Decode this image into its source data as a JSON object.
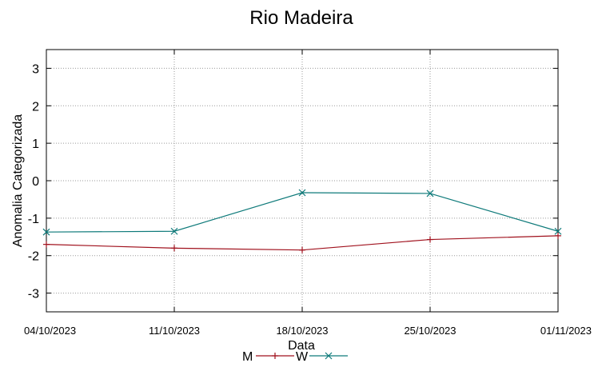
{
  "chart_data": {
    "type": "line",
    "title": "Rio Madeira",
    "xlabel": "Data",
    "ylabel": "Anomalia Categorizada",
    "x": [
      "04/10/2023",
      "11/10/2023",
      "18/10/2023",
      "25/10/2023",
      "01/11/2023"
    ],
    "ylim": [
      -3.5,
      3.5
    ],
    "yticks": [
      -3,
      -2,
      -1,
      0,
      1,
      2,
      3
    ],
    "grid": true,
    "legend_position": "bottom",
    "series": [
      {
        "name": "M",
        "color": "#a0111d",
        "marker": "plus",
        "values": [
          -1.7,
          -1.8,
          -1.85,
          -1.57,
          -1.47
        ]
      },
      {
        "name": "W",
        "color": "#0e7a7a",
        "marker": "cross",
        "values": [
          -1.37,
          -1.35,
          -0.32,
          -0.34,
          -1.35
        ]
      }
    ]
  }
}
